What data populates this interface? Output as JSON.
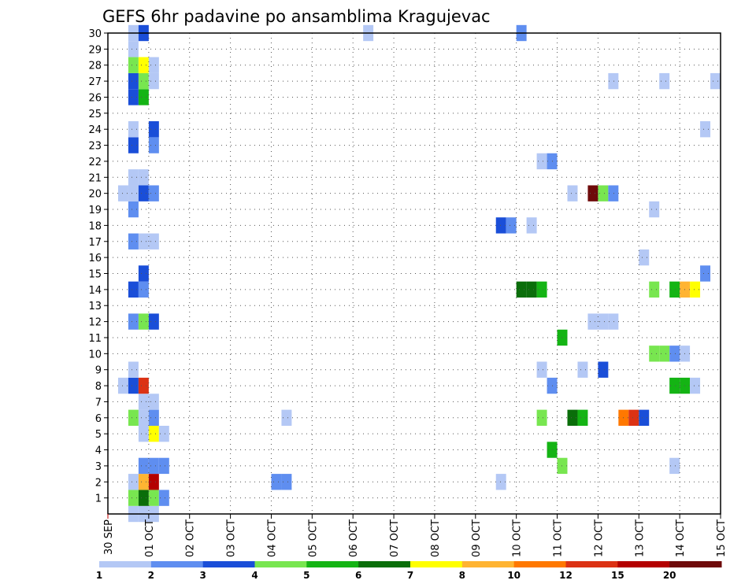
{
  "chart_data": {
    "type": "heatmap",
    "title": "GEFS 6hr padavine po ansamblima Kragujevac",
    "x_tick_labels": [
      "30 SEP",
      "01 OCT",
      "02 OCT",
      "03 OCT",
      "04 OCT",
      "05 OCT",
      "06 OCT",
      "07 OCT",
      "08 OCT",
      "09 OCT",
      "10 OCT",
      "11 OCT",
      "12 OCT",
      "13 OCT",
      "14 OCT",
      "15 OCT"
    ],
    "y_tick_labels": [
      "1",
      "2",
      "3",
      "4",
      "5",
      "6",
      "7",
      "8",
      "9",
      "10",
      "11",
      "12",
      "13",
      "14",
      "15",
      "16",
      "17",
      "18",
      "19",
      "20",
      "21",
      "22",
      "23",
      "24",
      "25",
      "26",
      "27",
      "28",
      "29",
      "30"
    ],
    "xlim": [
      0,
      60
    ],
    "ylim": [
      0,
      30
    ],
    "grid": true,
    "legend": {
      "placement": "bottom",
      "labels": [
        "1",
        "2",
        "3",
        "4",
        "5",
        "6",
        "7",
        "8",
        "10",
        "12",
        "15",
        "20"
      ],
      "colors": [
        "#b4c8f5",
        "#5f8ef0",
        "#1a4ed8",
        "#78e650",
        "#14b414",
        "#0a6e0a",
        "#ffff00",
        "#ffb432",
        "#ff7800",
        "#dc3214",
        "#b40000",
        "#6e0a0a"
      ]
    },
    "cells": [
      {
        "x": 2,
        "y": 0,
        "c": 0
      },
      {
        "x": 3,
        "y": 0,
        "c": 0
      },
      {
        "x": 4,
        "y": 0,
        "c": 0
      },
      {
        "x": 2,
        "y": 1,
        "c": 3
      },
      {
        "x": 3,
        "y": 1,
        "c": 5
      },
      {
        "x": 4,
        "y": 1,
        "c": 3
      },
      {
        "x": 5,
        "y": 1,
        "c": 1
      },
      {
        "x": 2,
        "y": 2,
        "c": 0
      },
      {
        "x": 3,
        "y": 2,
        "c": 7
      },
      {
        "x": 4,
        "y": 2,
        "c": 10
      },
      {
        "x": 16,
        "y": 2,
        "c": 1
      },
      {
        "x": 17,
        "y": 2,
        "c": 1
      },
      {
        "x": 38,
        "y": 2,
        "c": 0
      },
      {
        "x": 3,
        "y": 3,
        "c": 1
      },
      {
        "x": 4,
        "y": 3,
        "c": 1
      },
      {
        "x": 5,
        "y": 3,
        "c": 1
      },
      {
        "x": 44,
        "y": 3,
        "c": 3
      },
      {
        "x": 55,
        "y": 3,
        "c": 0
      },
      {
        "x": 43,
        "y": 4,
        "c": 4
      },
      {
        "x": 3,
        "y": 5,
        "c": 0
      },
      {
        "x": 4,
        "y": 5,
        "c": 6
      },
      {
        "x": 5,
        "y": 5,
        "c": 0
      },
      {
        "x": 2,
        "y": 6,
        "c": 3
      },
      {
        "x": 3,
        "y": 6,
        "c": 0
      },
      {
        "x": 4,
        "y": 6,
        "c": 1
      },
      {
        "x": 17,
        "y": 6,
        "c": 0
      },
      {
        "x": 42,
        "y": 6,
        "c": 3
      },
      {
        "x": 45,
        "y": 6,
        "c": 5
      },
      {
        "x": 46,
        "y": 6,
        "c": 4
      },
      {
        "x": 50,
        "y": 6,
        "c": 8
      },
      {
        "x": 51,
        "y": 6,
        "c": 9
      },
      {
        "x": 52,
        "y": 6,
        "c": 2
      },
      {
        "x": 3,
        "y": 7,
        "c": 0
      },
      {
        "x": 4,
        "y": 7,
        "c": 0
      },
      {
        "x": 1,
        "y": 8,
        "c": 0
      },
      {
        "x": 2,
        "y": 8,
        "c": 2
      },
      {
        "x": 3,
        "y": 8,
        "c": 9
      },
      {
        "x": 43,
        "y": 8,
        "c": 1
      },
      {
        "x": 55,
        "y": 8,
        "c": 4
      },
      {
        "x": 56,
        "y": 8,
        "c": 4
      },
      {
        "x": 57,
        "y": 8,
        "c": 0
      },
      {
        "x": 2,
        "y": 9,
        "c": 0
      },
      {
        "x": 42,
        "y": 9,
        "c": 0
      },
      {
        "x": 46,
        "y": 9,
        "c": 0
      },
      {
        "x": 48,
        "y": 9,
        "c": 2
      },
      {
        "x": 53,
        "y": 10,
        "c": 3
      },
      {
        "x": 54,
        "y": 10,
        "c": 3
      },
      {
        "x": 55,
        "y": 10,
        "c": 1
      },
      {
        "x": 56,
        "y": 10,
        "c": 0
      },
      {
        "x": 44,
        "y": 11,
        "c": 4
      },
      {
        "x": 2,
        "y": 12,
        "c": 1
      },
      {
        "x": 3,
        "y": 12,
        "c": 3
      },
      {
        "x": 4,
        "y": 12,
        "c": 2
      },
      {
        "x": 47,
        "y": 12,
        "c": 0
      },
      {
        "x": 48,
        "y": 12,
        "c": 0
      },
      {
        "x": 49,
        "y": 12,
        "c": 0
      },
      {
        "x": 2,
        "y": 14,
        "c": 2
      },
      {
        "x": 3,
        "y": 14,
        "c": 1
      },
      {
        "x": 40,
        "y": 14,
        "c": 5
      },
      {
        "x": 41,
        "y": 14,
        "c": 5
      },
      {
        "x": 42,
        "y": 14,
        "c": 4
      },
      {
        "x": 53,
        "y": 14,
        "c": 3
      },
      {
        "x": 55,
        "y": 14,
        "c": 4
      },
      {
        "x": 56,
        "y": 14,
        "c": 7
      },
      {
        "x": 57,
        "y": 14,
        "c": 6
      },
      {
        "x": 3,
        "y": 15,
        "c": 2
      },
      {
        "x": 58,
        "y": 15,
        "c": 1
      },
      {
        "x": 52,
        "y": 16,
        "c": 0
      },
      {
        "x": 2,
        "y": 17,
        "c": 1
      },
      {
        "x": 3,
        "y": 17,
        "c": 0
      },
      {
        "x": 4,
        "y": 17,
        "c": 0
      },
      {
        "x": 38,
        "y": 18,
        "c": 2
      },
      {
        "x": 39,
        "y": 18,
        "c": 1
      },
      {
        "x": 41,
        "y": 18,
        "c": 0
      },
      {
        "x": 2,
        "y": 19,
        "c": 1
      },
      {
        "x": 53,
        "y": 19,
        "c": 0
      },
      {
        "x": 1,
        "y": 20,
        "c": 0
      },
      {
        "x": 2,
        "y": 20,
        "c": 0
      },
      {
        "x": 3,
        "y": 20,
        "c": 2
      },
      {
        "x": 4,
        "y": 20,
        "c": 1
      },
      {
        "x": 45,
        "y": 20,
        "c": 0
      },
      {
        "x": 47,
        "y": 20,
        "c": 11
      },
      {
        "x": 48,
        "y": 20,
        "c": 3
      },
      {
        "x": 49,
        "y": 20,
        "c": 1
      },
      {
        "x": 2,
        "y": 21,
        "c": 0
      },
      {
        "x": 3,
        "y": 21,
        "c": 0
      },
      {
        "x": 42,
        "y": 22,
        "c": 0
      },
      {
        "x": 43,
        "y": 22,
        "c": 1
      },
      {
        "x": 2,
        "y": 23,
        "c": 2
      },
      {
        "x": 4,
        "y": 23,
        "c": 1
      },
      {
        "x": 2,
        "y": 24,
        "c": 0
      },
      {
        "x": 4,
        "y": 24,
        "c": 2
      },
      {
        "x": 58,
        "y": 24,
        "c": 0
      },
      {
        "x": 2,
        "y": 26,
        "c": 2
      },
      {
        "x": 3,
        "y": 26,
        "c": 4
      },
      {
        "x": 2,
        "y": 27,
        "c": 2
      },
      {
        "x": 3,
        "y": 27,
        "c": 3
      },
      {
        "x": 4,
        "y": 27,
        "c": 0
      },
      {
        "x": 49,
        "y": 27,
        "c": 0
      },
      {
        "x": 54,
        "y": 27,
        "c": 0
      },
      {
        "x": 59,
        "y": 27,
        "c": 0
      },
      {
        "x": 2,
        "y": 28,
        "c": 3
      },
      {
        "x": 3,
        "y": 28,
        "c": 6
      },
      {
        "x": 4,
        "y": 28,
        "c": 0
      },
      {
        "x": 2,
        "y": 29,
        "c": 0
      },
      {
        "x": 2,
        "y": 30,
        "c": 0
      },
      {
        "x": 3,
        "y": 30,
        "c": 2
      },
      {
        "x": 25,
        "y": 30,
        "c": 0
      },
      {
        "x": 40,
        "y": 30,
        "c": 1
      }
    ]
  }
}
